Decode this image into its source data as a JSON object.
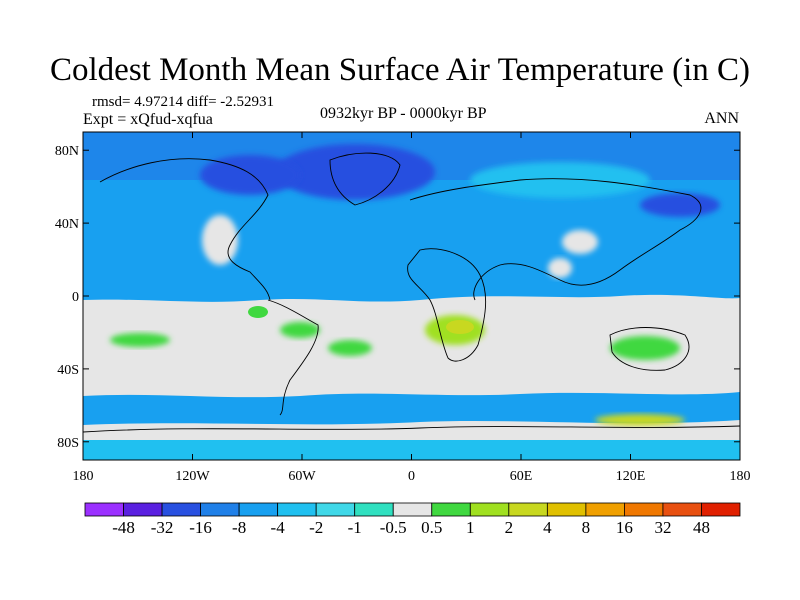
{
  "header": {
    "title": "Coldest Month Mean Surface Air Temperature (in C)",
    "stats": "rmsd= 4.97214 diff= -2.52931",
    "experiment": "Expt = xQfud-xqfua",
    "period": "0932kyr BP - 0000kyr BP",
    "season": "ANN"
  },
  "map": {
    "projection": "cylindrical-equidistant",
    "lon_range": [
      -180,
      180
    ],
    "lat_range": [
      -90,
      90
    ],
    "lat_ticks": [
      {
        "value": 80,
        "label": "80N"
      },
      {
        "value": 40,
        "label": "40N"
      },
      {
        "value": 0,
        "label": "0"
      },
      {
        "value": -40,
        "label": "40S"
      },
      {
        "value": -80,
        "label": "80S"
      }
    ],
    "lon_ticks": [
      {
        "value": -180,
        "label": "180"
      },
      {
        "value": -120,
        "label": "120W"
      },
      {
        "value": -60,
        "label": "60W"
      },
      {
        "value": 0,
        "label": "0"
      },
      {
        "value": 60,
        "label": "60E"
      },
      {
        "value": 120,
        "label": "120E"
      },
      {
        "value": 180,
        "label": "180"
      }
    ]
  },
  "colorbar": {
    "colors": [
      "#9b30ff",
      "#5a20e0",
      "#2850e0",
      "#2080e8",
      "#18a0f0",
      "#20c0f0",
      "#40d8e8",
      "#30e0c0",
      "#e6e6e6",
      "#40d840",
      "#a0e020",
      "#c8d820",
      "#e0c000",
      "#f0a000",
      "#f07800",
      "#e85010",
      "#e02000"
    ],
    "labels": [
      "-48",
      "-32",
      "-16",
      "-8",
      "-4",
      "-2",
      "-1",
      "-0.5",
      "0.5",
      "1",
      "2",
      "4",
      "8",
      "16",
      "32",
      "48"
    ],
    "colors_meaning": "field colored by temperature difference bins"
  }
}
